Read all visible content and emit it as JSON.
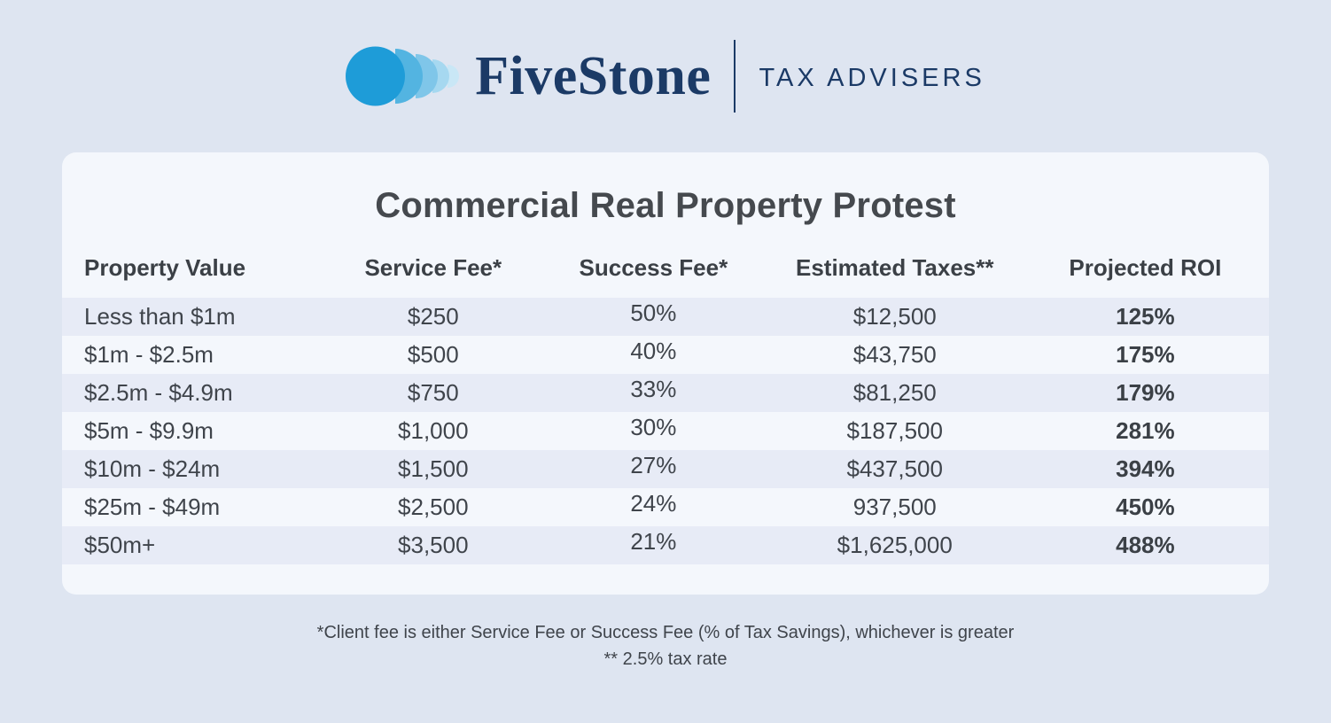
{
  "brand": {
    "name": "FiveStone",
    "tagline": "TAX ADVISERS",
    "logo_colors": [
      "#1E9CD8",
      "#53B4E1",
      "#7FC6E9",
      "#A6D8F0",
      "#C9E7F6"
    ],
    "navy": "#1B3A66"
  },
  "table": {
    "title": "Commercial Real Property Protest",
    "columns": [
      "Property Value",
      "Service Fee*",
      "Success Fee*",
      "Estimated Taxes**",
      "Projected ROI"
    ],
    "rows": [
      [
        "Less than $1m",
        "$250",
        "50%",
        "$12,500",
        "125%"
      ],
      [
        "$1m - $2.5m",
        "$500",
        "40%",
        "$43,750",
        "175%"
      ],
      [
        "$2.5m - $4.9m",
        "$750",
        "33%",
        "$81,250",
        "179%"
      ],
      [
        "$5m - $9.9m",
        "$1,000",
        "30%",
        "$187,500",
        "281%"
      ],
      [
        "$10m - $24m",
        "$1,500",
        "27%",
        "$437,500",
        "394%"
      ],
      [
        "$25m - $49m",
        "$2,500",
        "24%",
        "937,500",
        "450%"
      ],
      [
        "$50m+",
        "$3,500",
        "21%",
        "$1,625,000",
        "488%"
      ]
    ]
  },
  "footnotes": [
    "*Client fee is either Service Fee or Success Fee (% of Tax Savings), whichever is greater",
    "** 2.5% tax rate"
  ],
  "colors": {
    "page_bg": "#DEE5F1",
    "card_bg": "#F4F7FC",
    "row_stripe_bg": "#E7EBF6",
    "text_dark": "#3F444B",
    "brand_navy": "#1B3A66",
    "brand_blue": "#1E9CD8"
  }
}
